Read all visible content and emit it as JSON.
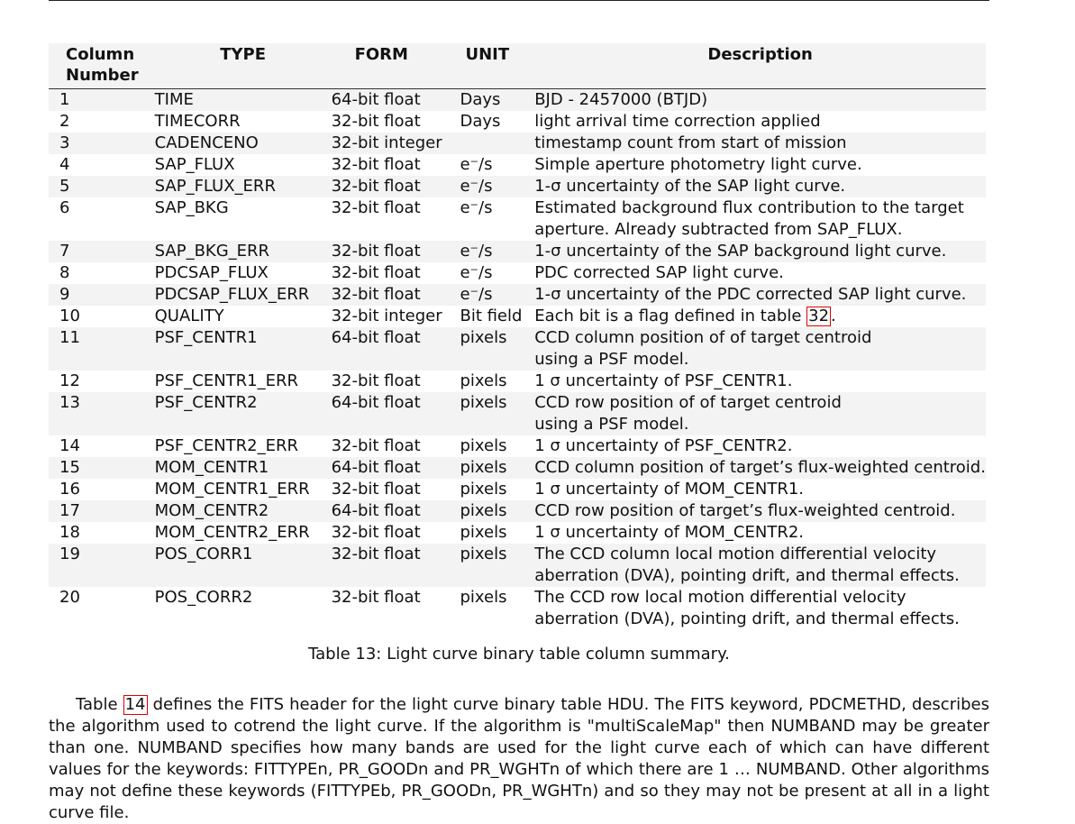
{
  "table": {
    "headers": [
      "Column\nNumber",
      "TYPE",
      "FORM",
      "UNIT",
      "Description"
    ],
    "header_col1_line1": "Column",
    "header_col1_line2": "Number",
    "rows": [
      {
        "num": "1",
        "type": "TIME",
        "form": "64-bit float",
        "unit": "Days",
        "desc": "BJD - 2457000 (BTJD)"
      },
      {
        "num": "2",
        "type": "TIMECORR",
        "form": "32-bit float",
        "unit": "Days",
        "desc": "light arrival time correction applied"
      },
      {
        "num": "3",
        "type": "CADENCENO",
        "form": "32-bit integer",
        "unit": "",
        "desc": "timestamp count from start of mission"
      },
      {
        "num": "4",
        "type": "SAP_FLUX",
        "form": "32-bit float",
        "unit": "e⁻/s",
        "desc": "Simple aperture photometry light curve."
      },
      {
        "num": "5",
        "type": "SAP_FLUX_ERR",
        "form": "32-bit float",
        "unit": "e⁻/s",
        "desc": "1-σ uncertainty of the SAP light curve."
      },
      {
        "num": "6",
        "type": "SAP_BKG",
        "form": "32-bit float",
        "unit": "e⁻/s",
        "desc": "Estimated background flux contribution to the target"
      },
      {
        "num": "",
        "type": "",
        "form": "",
        "unit": "",
        "desc": "aperture.  Already subtracted from SAP_FLUX."
      },
      {
        "num": "7",
        "type": "SAP_BKG_ERR",
        "form": "32-bit float",
        "unit": "e⁻/s",
        "desc": "1-σ uncertainty of the SAP background light curve."
      },
      {
        "num": "8",
        "type": "PDCSAP_FLUX",
        "form": "32-bit float",
        "unit": "e⁻/s",
        "desc": "PDC corrected SAP light curve."
      },
      {
        "num": "9",
        "type": "PDCSAP_FLUX_ERR",
        "form": "32-bit float",
        "unit": "e⁻/s",
        "desc": "1-σ uncertainty of the PDC corrected SAP light curve."
      },
      {
        "num": "10",
        "type": "QUALITY",
        "form": "32-bit integer",
        "unit": "Bit field",
        "desc": "Each bit is a flag defined in table ",
        "ref": "32",
        "desc_after": "."
      },
      {
        "num": "11",
        "type": "PSF_CENTR1",
        "form": "64-bit float",
        "unit": "pixels",
        "desc": "CCD column position of of target centroid"
      },
      {
        "num": "",
        "type": "",
        "form": "",
        "unit": "",
        "desc": "using a PSF model."
      },
      {
        "num": "12",
        "type": "PSF_CENTR1_ERR",
        "form": "32-bit float",
        "unit": "pixels",
        "desc": "1 σ uncertainty of PSF_CENTR1."
      },
      {
        "num": "13",
        "type": "PSF_CENTR2",
        "form": "64-bit float",
        "unit": "pixels",
        "desc": "CCD row position of of target centroid"
      },
      {
        "num": "",
        "type": "",
        "form": "",
        "unit": "",
        "desc": "using a PSF model."
      },
      {
        "num": "14",
        "type": "PSF_CENTR2_ERR",
        "form": "32-bit float",
        "unit": "pixels",
        "desc": "1 σ uncertainty of PSF_CENTR2."
      },
      {
        "num": "15",
        "type": "MOM_CENTR1",
        "form": "64-bit float",
        "unit": "pixels",
        "desc": "CCD column position of target’s flux-weighted centroid."
      },
      {
        "num": "16",
        "type": "MOM_CENTR1_ERR",
        "form": "32-bit float",
        "unit": "pixels",
        "desc": "1 σ uncertainty of MOM_CENTR1."
      },
      {
        "num": "17",
        "type": "MOM_CENTR2",
        "form": "64-bit float",
        "unit": "pixels",
        "desc": "CCD row position of target’s flux-weighted centroid."
      },
      {
        "num": "18",
        "type": "MOM_CENTR2_ERR",
        "form": "32-bit float",
        "unit": "pixels",
        "desc": "1 σ uncertainty of MOM_CENTR2."
      },
      {
        "num": "19",
        "type": "POS_CORR1",
        "form": "32-bit float",
        "unit": "pixels",
        "desc": "The CCD column local motion differential velocity"
      },
      {
        "num": "",
        "type": "",
        "form": "",
        "unit": "",
        "desc": "aberration (DVA), pointing drift, and thermal effects."
      },
      {
        "num": "20",
        "type": "POS_CORR2",
        "form": "32-bit float",
        "unit": "pixels",
        "desc": "The CCD row local motion differential velocity"
      },
      {
        "num": "",
        "type": "",
        "form": "",
        "unit": "",
        "desc": "aberration (DVA), pointing drift, and thermal effects."
      }
    ],
    "shading": [
      true,
      false,
      true,
      false,
      true,
      false,
      false,
      true,
      false,
      true,
      false,
      true,
      true,
      false,
      true,
      true,
      false,
      true,
      false,
      true,
      false,
      true,
      true,
      false,
      false
    ],
    "caption": "Table 13:  Light curve binary table column summary."
  },
  "paragraph": {
    "before_ref": "Table ",
    "ref": "14",
    "after_ref": " defines the FITS header for the light curve binary table HDU. The FITS keyword, PDCMETHD, describes the algorithm used to cotrend the light curve.  If the algorithm is \"multiScaleMap\" then NUMBAND may be greater than one. NUMBAND specifies how many bands are used for the light curve each of which can have different values for the keywords: FITTYPEn, PR_GOODn and PR_WGHTn of which there are 1 … NUMBAND. Other algorithms may not define these keywords (FITTYPEb, PR_GOODn, PR_WGHTn) and so they may not be present at all in a light curve file."
  }
}
